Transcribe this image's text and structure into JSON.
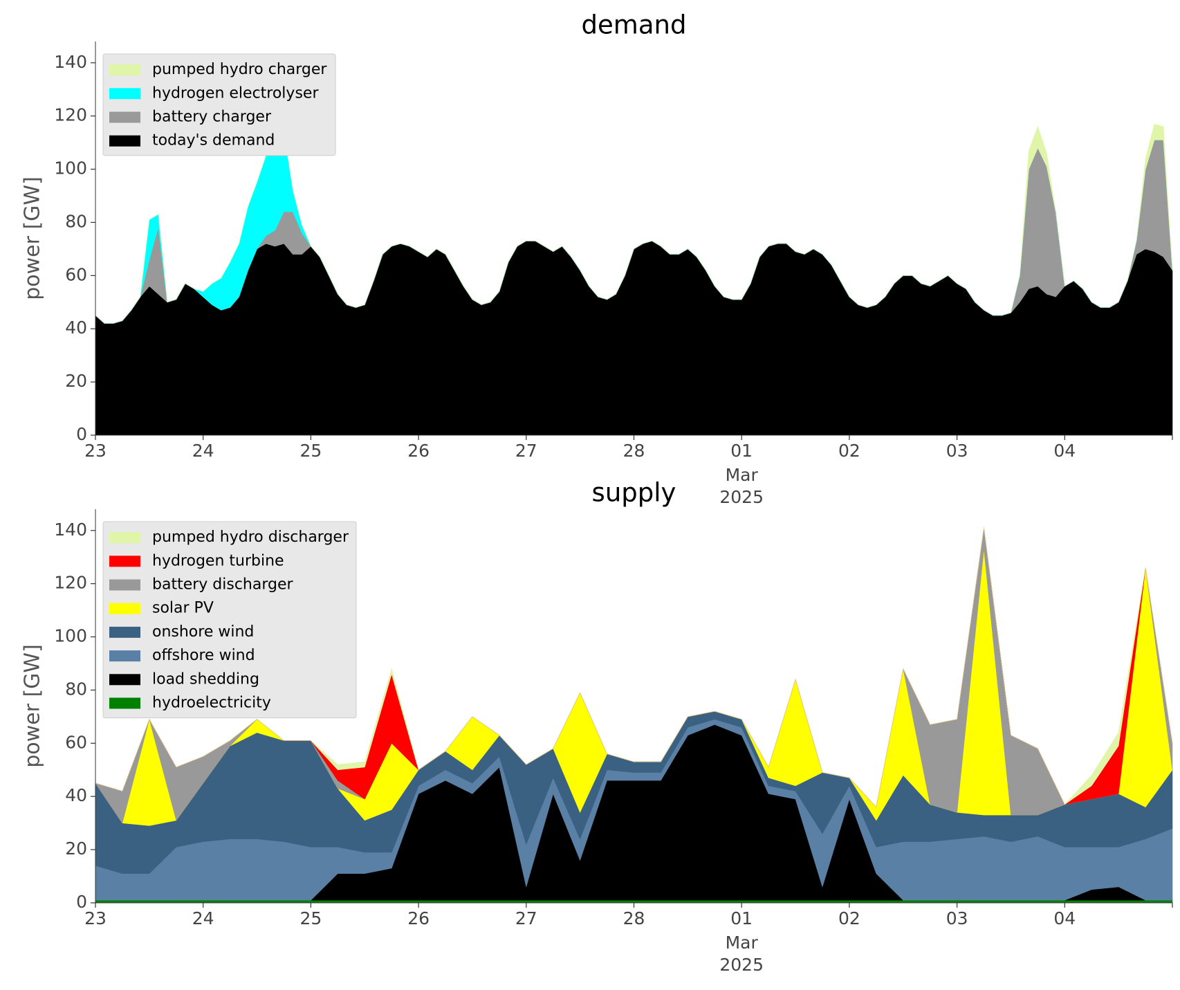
{
  "chart_data": [
    {
      "type": "area",
      "stacked": true,
      "title": "demand",
      "ylabel": "power [GW]",
      "ylim": [
        0,
        148
      ],
      "yticks": [
        "0",
        "20",
        "40",
        "60",
        "80",
        "100",
        "120",
        "140"
      ],
      "xlim": [
        0,
        240
      ],
      "x_unit": "hours from 23 Feb 2025 00:00",
      "xticks": [
        {
          "label": "23"
        },
        {
          "label": "24"
        },
        {
          "label": "25"
        },
        {
          "label": "26"
        },
        {
          "label": "27"
        },
        {
          "label": "28"
        },
        {
          "label": "01",
          "sub": [
            "Mar",
            "2025"
          ]
        },
        {
          "label": "02"
        },
        {
          "label": "03"
        },
        {
          "label": "04"
        }
      ],
      "legend": {
        "position": "top-left"
      },
      "x": [
        0,
        2,
        4,
        6,
        8,
        10,
        12,
        14,
        16,
        18,
        20,
        22,
        24,
        26,
        28,
        30,
        32,
        34,
        36,
        38,
        40,
        42,
        44,
        46,
        48,
        50,
        52,
        54,
        56,
        58,
        60,
        62,
        64,
        66,
        68,
        70,
        72,
        74,
        76,
        78,
        80,
        82,
        84,
        86,
        88,
        90,
        92,
        94,
        96,
        98,
        100,
        102,
        104,
        106,
        108,
        110,
        112,
        114,
        116,
        118,
        120,
        122,
        124,
        126,
        128,
        130,
        132,
        134,
        136,
        138,
        140,
        142,
        144,
        146,
        148,
        150,
        152,
        154,
        156,
        158,
        160,
        162,
        164,
        166,
        168,
        170,
        172,
        174,
        176,
        178,
        180,
        182,
        184,
        186,
        188,
        190,
        192,
        194,
        196,
        198,
        200,
        202,
        204,
        206,
        208,
        210,
        212,
        214,
        216,
        218,
        220,
        222,
        224,
        226,
        228,
        230,
        232,
        234,
        236,
        238,
        240
      ],
      "series": [
        {
          "name": "today's demand",
          "color": "#000000",
          "values": [
            45,
            42,
            42,
            43,
            47,
            52,
            56,
            53,
            50,
            51,
            57,
            55,
            52,
            49,
            47,
            48,
            52,
            62,
            70,
            72,
            71,
            72,
            68,
            68,
            71,
            67,
            60,
            53,
            49,
            48,
            49,
            58,
            68,
            71,
            72,
            71,
            69,
            67,
            70,
            68,
            62,
            56,
            51,
            49,
            50,
            54,
            65,
            71,
            73,
            73,
            71,
            69,
            71,
            67,
            62,
            56,
            52,
            51,
            53,
            60,
            70,
            72,
            73,
            71,
            68,
            68,
            70,
            67,
            62,
            56,
            52,
            51,
            51,
            57,
            67,
            71,
            72,
            72,
            69,
            68,
            70,
            68,
            64,
            58,
            52,
            49,
            48,
            49,
            52,
            57,
            60,
            60,
            57,
            56,
            58,
            60,
            57,
            55,
            50,
            47,
            45,
            45,
            46,
            50,
            55,
            56,
            53,
            52,
            56,
            58,
            55,
            50,
            48,
            48,
            50,
            58,
            68,
            70,
            69,
            67,
            62
          ]
        },
        {
          "name": "battery charger",
          "color": "#999999",
          "values": [
            0,
            0,
            0,
            0,
            0,
            0,
            10,
            25,
            0,
            0,
            0,
            0,
            0,
            0,
            0,
            0,
            0,
            0,
            0,
            3,
            6,
            12,
            16,
            8,
            0,
            0,
            0,
            0,
            0,
            0,
            0,
            0,
            0,
            0,
            0,
            0,
            0,
            0,
            0,
            0,
            0,
            0,
            0,
            0,
            0,
            0,
            0,
            0,
            0,
            0,
            0,
            0,
            0,
            0,
            0,
            0,
            0,
            0,
            0,
            0,
            0,
            0,
            0,
            0,
            0,
            0,
            0,
            0,
            0,
            0,
            0,
            0,
            0,
            0,
            0,
            0,
            0,
            0,
            0,
            0,
            0,
            0,
            0,
            0,
            0,
            0,
            0,
            0,
            0,
            0,
            0,
            0,
            0,
            0,
            0,
            0,
            0,
            0,
            0,
            0,
            0,
            0,
            0,
            10,
            45,
            52,
            48,
            32,
            0,
            0,
            0,
            0,
            0,
            0,
            0,
            0,
            5,
            30,
            42,
            44,
            0
          ]
        },
        {
          "name": "hydrogen electrolyser",
          "color": "#00ffff",
          "values": [
            0,
            0,
            0,
            0,
            0,
            0,
            15,
            5,
            0,
            0,
            0,
            0,
            2,
            8,
            12,
            17,
            20,
            24,
            25,
            30,
            36,
            30,
            8,
            3,
            0,
            0,
            0,
            0,
            0,
            0,
            0,
            0,
            0,
            0,
            0,
            0,
            0,
            0,
            0,
            0,
            0,
            0,
            0,
            0,
            0,
            0,
            0,
            0,
            0,
            0,
            0,
            0,
            0,
            0,
            0,
            0,
            0,
            0,
            0,
            0,
            0,
            0,
            0,
            0,
            0,
            0,
            0,
            0,
            0,
            0,
            0,
            0,
            0,
            0,
            0,
            0,
            0,
            0,
            0,
            0,
            0,
            0,
            0,
            0,
            0,
            0,
            0,
            0,
            0,
            0,
            0,
            0,
            0,
            0,
            0,
            0,
            0,
            0,
            0,
            0,
            0,
            0,
            0,
            0,
            0,
            0,
            0,
            0,
            0,
            0,
            0,
            0,
            0,
            0,
            0,
            0,
            0,
            0,
            0,
            0,
            0
          ]
        },
        {
          "name": "pumped hydro charger",
          "color": "#e0f5a8",
          "values": [
            0,
            0,
            0,
            0,
            0,
            0,
            0,
            0,
            0,
            0,
            0,
            0,
            0,
            0,
            0,
            0,
            0,
            0,
            0,
            0,
            0,
            0,
            0,
            0,
            0,
            0,
            0,
            0,
            0,
            0,
            0,
            0,
            0,
            0,
            0,
            0,
            0,
            0,
            0,
            0,
            0,
            0,
            0,
            0,
            0,
            0,
            0,
            0,
            0,
            0,
            0,
            0,
            0,
            0,
            0,
            0,
            0,
            0,
            0,
            0,
            0,
            0,
            0,
            0,
            0,
            0,
            0,
            0,
            0,
            0,
            0,
            0,
            0,
            0,
            0,
            0,
            0,
            0,
            0,
            0,
            0,
            0,
            0,
            0,
            0,
            0,
            0,
            0,
            0,
            0,
            0,
            0,
            0,
            0,
            0,
            0,
            0,
            0,
            0,
            0,
            0,
            0,
            0,
            0,
            7,
            8,
            5,
            0,
            0,
            0,
            0,
            0,
            0,
            0,
            0,
            0,
            0,
            4,
            6,
            5,
            0
          ]
        }
      ]
    },
    {
      "type": "area",
      "stacked": true,
      "title": "supply",
      "ylabel": "power [GW]",
      "ylim": [
        0,
        148
      ],
      "yticks": [
        "0",
        "20",
        "40",
        "60",
        "80",
        "100",
        "120",
        "140"
      ],
      "xlim": [
        0,
        240
      ],
      "x_unit": "hours from 23 Feb 2025 00:00",
      "xticks": [
        {
          "label": "23"
        },
        {
          "label": "24"
        },
        {
          "label": "25"
        },
        {
          "label": "26"
        },
        {
          "label": "27"
        },
        {
          "label": "28"
        },
        {
          "label": "01",
          "sub": [
            "Mar",
            "2025"
          ]
        },
        {
          "label": "02"
        },
        {
          "label": "03"
        },
        {
          "label": "04"
        }
      ],
      "legend": {
        "position": "top-left"
      },
      "x": [
        0,
        6,
        12,
        18,
        24,
        30,
        36,
        42,
        48,
        54,
        60,
        66,
        72,
        78,
        84,
        90,
        96,
        102,
        108,
        114,
        120,
        126,
        132,
        138,
        144,
        150,
        156,
        162,
        168,
        174,
        180,
        186,
        192,
        198,
        204,
        210,
        216,
        222,
        228,
        234,
        240
      ],
      "series": [
        {
          "name": "hydroelectricity",
          "color": "#008000",
          "values": [
            1,
            1,
            1,
            1,
            1,
            1,
            1,
            1,
            1,
            1,
            1,
            1,
            1,
            1,
            1,
            1,
            1,
            1,
            1,
            1,
            1,
            1,
            1,
            1,
            1,
            1,
            1,
            1,
            1,
            1,
            1,
            1,
            1,
            1,
            1,
            1,
            1,
            1,
            1,
            1,
            1
          ]
        },
        {
          "name": "load shedding",
          "color": "#000000",
          "values": [
            0,
            0,
            0,
            0,
            0,
            0,
            0,
            0,
            0,
            10,
            10,
            12,
            40,
            45,
            40,
            50,
            5,
            40,
            15,
            45,
            45,
            45,
            62,
            66,
            62,
            40,
            38,
            5,
            38,
            10,
            0,
            0,
            0,
            0,
            0,
            0,
            0,
            4,
            5,
            0,
            0
          ]
        },
        {
          "name": "offshore wind",
          "color": "#5b80a5",
          "values": [
            13,
            10,
            10,
            20,
            22,
            23,
            23,
            22,
            20,
            10,
            8,
            6,
            3,
            4,
            4,
            4,
            16,
            6,
            8,
            4,
            3,
            3,
            3,
            2,
            3,
            3,
            3,
            20,
            5,
            10,
            22,
            22,
            23,
            24,
            22,
            24,
            20,
            16,
            15,
            23,
            27
          ]
        },
        {
          "name": "onshore wind",
          "color": "#3a6082",
          "values": [
            31,
            19,
            18,
            10,
            22,
            35,
            40,
            38,
            40,
            22,
            12,
            16,
            6,
            7,
            5,
            8,
            30,
            11,
            10,
            6,
            4,
            4,
            4,
            3,
            3,
            3,
            2,
            23,
            3,
            10,
            25,
            14,
            10,
            8,
            10,
            8,
            16,
            18,
            20,
            12,
            22
          ]
        },
        {
          "name": "solar PV",
          "color": "#ffff00",
          "values": [
            0,
            0,
            40,
            0,
            0,
            0,
            5,
            0,
            0,
            0,
            8,
            25,
            0,
            0,
            20,
            0,
            0,
            0,
            45,
            0,
            0,
            0,
            0,
            0,
            0,
            4,
            40,
            0,
            0,
            5,
            40,
            0,
            0,
            100,
            0,
            0,
            0,
            0,
            0,
            90,
            0
          ]
        },
        {
          "name": "battery discharger",
          "color": "#999999",
          "values": [
            0,
            12,
            0,
            20,
            10,
            2,
            0,
            0,
            0,
            3,
            0,
            0,
            0,
            0,
            0,
            0,
            0,
            0,
            0,
            0,
            0,
            0,
            0,
            0,
            0,
            0,
            0,
            0,
            0,
            0,
            0,
            30,
            35,
            8,
            30,
            25,
            0,
            0,
            0,
            0,
            10
          ]
        },
        {
          "name": "hydrogen turbine",
          "color": "#ff0000",
          "values": [
            0,
            0,
            0,
            0,
            0,
            0,
            0,
            0,
            0,
            4,
            12,
            26,
            0,
            0,
            0,
            0,
            0,
            0,
            0,
            0,
            0,
            0,
            0,
            0,
            0,
            0,
            0,
            0,
            0,
            0,
            0,
            0,
            0,
            0,
            0,
            0,
            0,
            5,
            18,
            0,
            0
          ]
        },
        {
          "name": "pumped hydro discharger",
          "color": "#e0f5a8",
          "values": [
            0,
            0,
            0,
            0,
            0,
            0,
            0,
            0,
            0,
            2,
            2,
            2,
            0,
            0,
            0,
            0,
            0,
            0,
            0,
            0,
            0,
            0,
            0,
            0,
            0,
            0,
            0,
            0,
            0,
            0,
            0,
            0,
            0,
            0,
            0,
            0,
            0,
            4,
            5,
            0,
            0
          ]
        }
      ]
    }
  ]
}
